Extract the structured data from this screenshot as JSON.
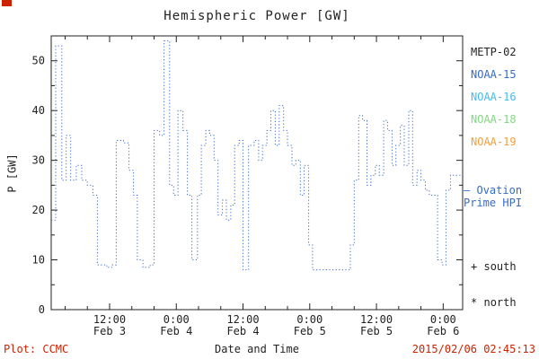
{
  "window": {
    "corner_mark_color": "#cc2200"
  },
  "chart_data": {
    "type": "line",
    "subtype": "dotted-step",
    "title": "Hemispheric Power [GW]",
    "ylabel": "P [GW]",
    "xlabel": "Date and Time",
    "ylim": [
      0,
      55
    ],
    "yticks": [
      0,
      10,
      20,
      30,
      40,
      50
    ],
    "x_unit": "hours since Feb 3 00:00",
    "xlim_hours": [
      1.5,
      75.5
    ],
    "xticks": [
      {
        "t": 12,
        "time": "12:00",
        "date": "Feb 3"
      },
      {
        "t": 24,
        "time": "0:00",
        "date": "Feb 4"
      },
      {
        "t": 36,
        "time": "12:00",
        "date": "Feb 4"
      },
      {
        "t": 48,
        "time": "0:00",
        "date": "Feb 5"
      },
      {
        "t": 60,
        "time": "12:00",
        "date": "Feb 5"
      },
      {
        "t": 72,
        "time": "0:00",
        "date": "Feb 6"
      }
    ],
    "grid": false,
    "legend_position": "right-outside",
    "series": [
      {
        "name": "Ovation Prime HPI",
        "color": "#3a6bc8",
        "style": "dotted-step",
        "t": [
          1.5,
          2.3,
          3.4,
          4.2,
          5.0,
          6.0,
          7.0,
          8.0,
          9.0,
          9.8,
          11.5,
          12.5,
          13.2,
          14.5,
          15.5,
          16.3,
          17.0,
          18.0,
          19.3,
          20.0,
          21.0,
          21.8,
          22.8,
          23.5,
          24.3,
          25.2,
          26.0,
          26.8,
          27.8,
          28.5,
          29.3,
          30.0,
          30.8,
          31.5,
          32.3,
          33.0,
          33.8,
          34.5,
          35.3,
          36.0,
          37.0,
          38.0,
          38.8,
          39.5,
          40.3,
          41.0,
          41.8,
          42.5,
          43.3,
          44.0,
          44.8,
          45.5,
          46.3,
          47.0,
          47.8,
          48.5,
          54.5,
          55.3,
          56.0,
          56.8,
          57.5,
          58.3,
          59.0,
          59.8,
          60.5,
          61.3,
          62.0,
          62.8,
          63.5,
          64.3,
          65.0,
          65.8,
          66.5,
          67.3,
          68.0,
          68.8,
          69.5,
          70.3,
          71.0,
          71.8,
          72.5,
          73.3,
          75.5
        ],
        "p": [
          18,
          53,
          26,
          35,
          26,
          29,
          26,
          25,
          23,
          9,
          8.5,
          9,
          34,
          33.5,
          28,
          23,
          10,
          8.5,
          9,
          36,
          35,
          54,
          25,
          23,
          40,
          36,
          23,
          10,
          23,
          33,
          36,
          35,
          30,
          19,
          22,
          18,
          21,
          33,
          34,
          8,
          33,
          34,
          30,
          33,
          36,
          40,
          33,
          41,
          36,
          33,
          29,
          30,
          23,
          29,
          13,
          8,
          8,
          13,
          26,
          39,
          38,
          25,
          27,
          29,
          27,
          38,
          36,
          29,
          33,
          37,
          29,
          40,
          25,
          28,
          26,
          24,
          23,
          23,
          10,
          9,
          24,
          27,
          27
        ]
      }
    ]
  },
  "legend": {
    "satellites": [
      {
        "label": "METP-02",
        "color": "#222222"
      },
      {
        "label": "NOAA-15",
        "color": "#3a6bc8"
      },
      {
        "label": "NOAA-16",
        "color": "#45bbee"
      },
      {
        "label": "NOAA-18",
        "color": "#82d882"
      },
      {
        "label": "NOAA-19",
        "color": "#f0a040"
      }
    ]
  },
  "annotation": {
    "dash": "—",
    "line1": "Ovation",
    "line2": "Prime HPI",
    "color": "#3a6bc8"
  },
  "markers": [
    {
      "symbol": "+",
      "label": "south"
    },
    {
      "symbol": "*",
      "label": "north"
    }
  ],
  "footer": {
    "left": "Plot: CCMC",
    "right": "2015/02/06 02:45:13",
    "accent_color": "#cc2200"
  }
}
